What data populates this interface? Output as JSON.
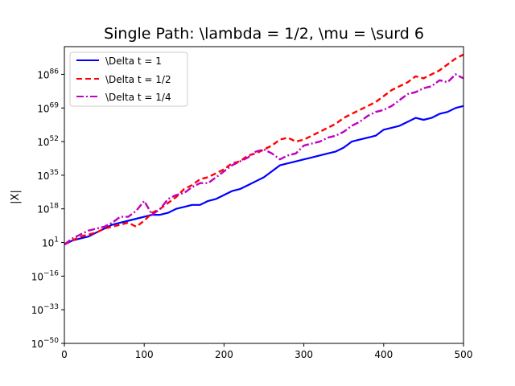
{
  "chart_data": {
    "type": "line",
    "title": "Single Path: \\lambda = 1/2, \\mu = \\surd 6",
    "xlabel": "",
    "ylabel": "|X|",
    "xlim": [
      0,
      500
    ],
    "ylim_log10": [
      -50,
      100
    ],
    "yscale": "log",
    "xticks": [
      0,
      100,
      200,
      300,
      400,
      500
    ],
    "xtick_labels": [
      "0",
      "100",
      "200",
      "300",
      "400",
      "500"
    ],
    "yticks_log10": [
      -50,
      -33,
      -16,
      1,
      18,
      35,
      52,
      69,
      86
    ],
    "ytick_labels": [
      {
        "base": "10",
        "exp": "−50"
      },
      {
        "base": "10",
        "exp": "−33"
      },
      {
        "base": "10",
        "exp": "−16"
      },
      {
        "base": "10",
        "exp": "1"
      },
      {
        "base": "10",
        "exp": "18"
      },
      {
        "base": "10",
        "exp": "35"
      },
      {
        "base": "10",
        "exp": "52"
      },
      {
        "base": "10",
        "exp": "69"
      },
      {
        "base": "10",
        "exp": "86"
      }
    ],
    "grid": false,
    "legend_position": "top-left",
    "series": [
      {
        "name": "\\Delta t = 1",
        "color": "#0000ff",
        "style": "solid",
        "x": [
          0,
          10,
          20,
          30,
          40,
          50,
          60,
          70,
          80,
          90,
          100,
          110,
          120,
          130,
          140,
          150,
          160,
          170,
          180,
          190,
          200,
          210,
          220,
          230,
          240,
          250,
          260,
          270,
          280,
          290,
          300,
          310,
          320,
          330,
          340,
          350,
          360,
          370,
          380,
          390,
          400,
          410,
          420,
          430,
          440,
          450,
          460,
          470,
          480,
          490,
          500
        ],
        "y_log10": [
          0,
          2,
          3,
          4,
          6,
          8,
          10,
          11,
          12,
          13,
          14,
          15,
          15,
          16,
          18,
          19,
          20,
          20,
          22,
          23,
          25,
          27,
          28,
          30,
          32,
          34,
          37,
          40,
          41,
          42,
          43,
          44,
          45,
          46,
          47,
          49,
          52,
          53,
          54,
          55,
          58,
          59,
          60,
          62,
          64,
          63,
          64,
          66,
          67,
          69,
          70
        ]
      },
      {
        "name": "\\Delta t = 1/2",
        "color": "#ff0000",
        "style": "dashed",
        "x": [
          0,
          10,
          20,
          30,
          40,
          50,
          60,
          70,
          80,
          90,
          100,
          110,
          120,
          130,
          140,
          150,
          160,
          170,
          180,
          190,
          200,
          210,
          220,
          230,
          240,
          250,
          260,
          270,
          280,
          290,
          300,
          310,
          320,
          330,
          340,
          350,
          360,
          370,
          380,
          390,
          400,
          410,
          420,
          430,
          440,
          450,
          460,
          470,
          480,
          490,
          500
        ],
        "y_log10": [
          0,
          2,
          4,
          5,
          6,
          8,
          9,
          10,
          11,
          9,
          12,
          16,
          18,
          21,
          24,
          28,
          30,
          33,
          34,
          36,
          38,
          41,
          42,
          45,
          46,
          48,
          50,
          53,
          54,
          52,
          53,
          55,
          57,
          59,
          61,
          64,
          66,
          68,
          70,
          72,
          75,
          78,
          80,
          82,
          85,
          84,
          86,
          88,
          91,
          94,
          96
        ]
      },
      {
        "name": "\\Delta t = 1/4",
        "color": "#bf00bf",
        "style": "dashdot",
        "x": [
          0,
          10,
          20,
          30,
          40,
          50,
          60,
          70,
          80,
          90,
          100,
          110,
          120,
          130,
          140,
          150,
          160,
          170,
          180,
          190,
          200,
          210,
          220,
          230,
          240,
          250,
          260,
          270,
          280,
          290,
          300,
          310,
          320,
          330,
          340,
          350,
          360,
          370,
          380,
          390,
          400,
          410,
          420,
          430,
          440,
          450,
          460,
          470,
          480,
          490,
          500
        ],
        "y_log10": [
          0,
          3,
          5,
          7,
          8,
          9,
          11,
          14,
          14,
          17,
          22,
          15,
          18,
          23,
          25,
          26,
          29,
          31,
          31,
          34,
          37,
          40,
          42,
          44,
          47,
          48,
          46,
          43,
          45,
          46,
          50,
          51,
          52,
          54,
          55,
          57,
          60,
          62,
          65,
          67,
          68,
          70,
          73,
          76,
          77,
          79,
          80,
          83,
          82,
          86,
          84
        ]
      }
    ]
  }
}
